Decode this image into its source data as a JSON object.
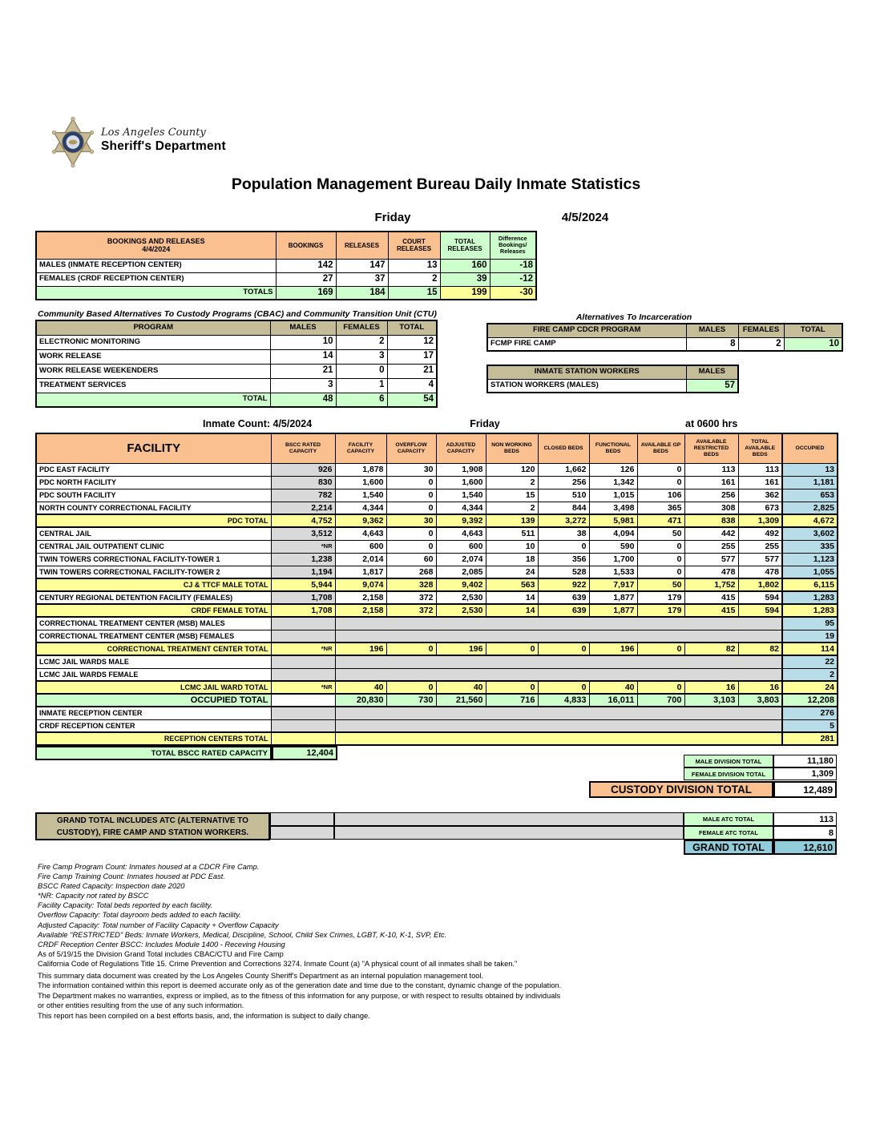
{
  "logo": {
    "line1": "Los Angeles County",
    "line2": "Sheriff's Department"
  },
  "title": "Population Management Bureau Daily Inmate Statistics",
  "colors": {
    "header_orange": "#FAC090",
    "total_yellow": "#FFFF99",
    "green": "#CCFFCC",
    "tan": "#C4BD97",
    "gray": "#D9D9D9",
    "occupied_blue": "#B7DEE8",
    "grand_blue": "#92CDDC"
  },
  "bookings": {
    "day": "Friday",
    "date": "4/5/2024",
    "header": {
      "title": "BOOKINGS AND RELEASES",
      "date": "4/4/2024",
      "cols": [
        "BOOKINGS",
        "RELEASES",
        "COURT RELEASES",
        "TOTAL RELEASES",
        "Difference Bookings/ Releases"
      ]
    },
    "rows": [
      {
        "label": "MALES (INMATE RECEPTION CENTER)",
        "values": [
          "142",
          "147",
          "13",
          "160",
          "-18"
        ]
      },
      {
        "label": "FEMALES (CRDF RECEPTION CENTER)",
        "values": [
          "27",
          "37",
          "2",
          "39",
          "-12"
        ]
      }
    ],
    "totals": {
      "label": "TOTALS",
      "values": [
        "169",
        "184",
        "15",
        "199",
        "-30"
      ]
    }
  },
  "cbac": {
    "title": "Community Based Alternatives To Custody Programs (CBAC) and Community Transition Unit (CTU)",
    "cols": [
      "PROGRAM",
      "MALES",
      "FEMALES",
      "TOTAL"
    ],
    "rows": [
      {
        "label": "ELECTRONIC MONITORING",
        "values": [
          "10",
          "2",
          "12"
        ]
      },
      {
        "label": "WORK RELEASE",
        "values": [
          "14",
          "3",
          "17"
        ]
      },
      {
        "label": "WORK RELEASE WEEKENDERS",
        "values": [
          "21",
          "0",
          "21"
        ]
      },
      {
        "label": "TREATMENT SERVICES",
        "values": [
          "3",
          "1",
          "4"
        ]
      }
    ],
    "totals": {
      "label": "TOTAL",
      "values": [
        "48",
        "6",
        "54"
      ]
    }
  },
  "alternatives": {
    "title": "Alternatives To Incarceration",
    "fire_camp": {
      "cols": [
        "FIRE CAMP CDCR PROGRAM",
        "MALES",
        "FEMALES",
        "TOTAL"
      ],
      "row": {
        "label": "FCMP FIRE CAMP",
        "values": [
          "8",
          "2",
          "10"
        ]
      }
    },
    "station_workers": {
      "cols": [
        "INMATE STATION WORKERS",
        "MALES"
      ],
      "row": {
        "label": "STATION WORKERS (MALES)",
        "value": "57"
      }
    }
  },
  "facility_table": {
    "inmate_count_label": "Inmate Count: 4/5/2024",
    "day": "Friday",
    "time": "at 0600 hrs",
    "columns": [
      "FACILITY",
      "BSCC RATED CAPACITY",
      "FACILITY CAPACITY",
      "OVERFLOW CAPACITY",
      "ADJUSTED CAPACITY",
      "NON WORKING BEDS",
      "CLOSED BEDS",
      "FUNCTIONAL BEDS",
      "AVAILABLE GP BEDS",
      "AVAILABLE RESTRICTED BEDS",
      "TOTAL AVAILABLE BEDS",
      "OCCUPIED"
    ],
    "rows": [
      {
        "type": "data",
        "label": "PDC EAST FACILITY",
        "bscc": "926",
        "vals": [
          "1,878",
          "30",
          "1,908",
          "120",
          "1,662",
          "126",
          "0",
          "113",
          "113"
        ],
        "occupied": "13"
      },
      {
        "type": "data",
        "label": "PDC NORTH FACILITY",
        "bscc": "830",
        "vals": [
          "1,600",
          "0",
          "1,600",
          "2",
          "256",
          "1,342",
          "0",
          "161",
          "161"
        ],
        "occupied": "1,181"
      },
      {
        "type": "data",
        "label": "PDC SOUTH FACILITY",
        "bscc": "782",
        "vals": [
          "1,540",
          "0",
          "1,540",
          "15",
          "510",
          "1,015",
          "106",
          "256",
          "362"
        ],
        "occupied": "653"
      },
      {
        "type": "data",
        "label": "NORTH COUNTY CORRECTIONAL FACILITY",
        "bscc": "2,214",
        "vals": [
          "4,344",
          "0",
          "4,344",
          "2",
          "844",
          "3,498",
          "365",
          "308",
          "673"
        ],
        "occupied": "2,825"
      },
      {
        "type": "total",
        "label": "PDC TOTAL",
        "bscc": "4,752",
        "vals": [
          "9,362",
          "30",
          "9,392",
          "139",
          "3,272",
          "5,981",
          "471",
          "838",
          "1,309"
        ],
        "occupied": "4,672"
      },
      {
        "type": "data",
        "label": "CENTRAL JAIL",
        "bscc": "3,512",
        "vals": [
          "4,643",
          "0",
          "4,643",
          "511",
          "38",
          "4,094",
          "50",
          "442",
          "492"
        ],
        "occupied": "3,602"
      },
      {
        "type": "data",
        "label": "CENTRAL JAIL OUTPATIENT CLINIC",
        "bscc": "*NR",
        "vals": [
          "600",
          "0",
          "600",
          "10",
          "0",
          "590",
          "0",
          "255",
          "255"
        ],
        "occupied": "335"
      },
      {
        "type": "data",
        "label": "TWIN TOWERS CORRECTIONAL FACILITY-TOWER 1",
        "bscc": "1,238",
        "vals": [
          "2,014",
          "60",
          "2,074",
          "18",
          "356",
          "1,700",
          "0",
          "577",
          "577"
        ],
        "occupied": "1,123"
      },
      {
        "type": "data",
        "label": "TWIN TOWERS CORRECTIONAL FACILITY-TOWER 2",
        "bscc": "1,194",
        "vals": [
          "1,817",
          "268",
          "2,085",
          "24",
          "528",
          "1,533",
          "0",
          "478",
          "478"
        ],
        "occupied": "1,055"
      },
      {
        "type": "total",
        "label": "CJ & TTCF MALE TOTAL",
        "bscc": "5,944",
        "vals": [
          "9,074",
          "328",
          "9,402",
          "563",
          "922",
          "7,917",
          "50",
          "1,752",
          "1,802"
        ],
        "occupied": "6,115"
      },
      {
        "type": "data",
        "label": "CENTURY REGIONAL DETENTION FACILITY (FEMALES)",
        "bscc": "1,708",
        "vals": [
          "2,158",
          "372",
          "2,530",
          "14",
          "639",
          "1,877",
          "179",
          "415",
          "594"
        ],
        "occupied": "1,283"
      },
      {
        "type": "total",
        "label": "CRDF FEMALE TOTAL",
        "bscc": "1,708",
        "vals": [
          "2,158",
          "372",
          "2,530",
          "14",
          "639",
          "1,877",
          "179",
          "415",
          "594"
        ],
        "occupied": "1,283"
      },
      {
        "type": "span",
        "label": "CORRECTIONAL TREATMENT CENTER (MSB) MALES",
        "occupied": "95"
      },
      {
        "type": "span",
        "label": "CORRECTIONAL TREATMENT CENTER (MSB) FEMALES",
        "occupied": "19"
      },
      {
        "type": "total",
        "label": "CORRECTIONAL TREATMENT CENTER  TOTAL",
        "bscc": "*NR",
        "vals": [
          "196",
          "0",
          "196",
          "0",
          "0",
          "196",
          "0",
          "82",
          "82"
        ],
        "occupied": "114"
      },
      {
        "type": "span",
        "label": "LCMC JAIL WARDS MALE",
        "occupied": "22"
      },
      {
        "type": "span",
        "label": "LCMC JAIL WARDS FEMALE",
        "occupied": "2"
      },
      {
        "type": "total",
        "label": "LCMC JAIL WARD TOTAL",
        "bscc": "*NR",
        "vals": [
          "40",
          "0",
          "40",
          "0",
          "0",
          "40",
          "0",
          "16",
          "16"
        ],
        "occupied": "24"
      },
      {
        "type": "occupied_total",
        "label": "OCCUPIED TOTAL",
        "bscc": "",
        "vals": [
          "20,830",
          "730",
          "21,560",
          "716",
          "4,833",
          "16,011",
          "700",
          "3,103",
          "3,803"
        ],
        "occupied": "12,208"
      },
      {
        "type": "span",
        "label": "INMATE RECEPTION CENTER",
        "occupied": "276"
      },
      {
        "type": "span",
        "label": "CRDF RECEPTION CENTER",
        "occupied": "5"
      },
      {
        "type": "total_span",
        "label": "RECEPTION CENTERS TOTAL",
        "occupied": "281"
      }
    ]
  },
  "summary": {
    "total_bscc_label": "TOTAL BSCC RATED CAPACITY",
    "total_bscc_value": "12,404",
    "male_division_label": "MALE DIVISION TOTAL",
    "male_division_value": "11,180",
    "female_division_label": "FEMALE DIVISION TOTAL",
    "female_division_value": "1,309",
    "custody_label": "CUSTODY DIVISION TOTAL",
    "custody_value": "12,489"
  },
  "grand_box": {
    "note_line1": "GRAND TOTAL INCLUDES ATC (ALTERNATIVE TO",
    "note_line2": "CUSTODY), FIRE CAMP AND STATION WORKERS.",
    "male_atc_label": "MALE ATC TOTAL",
    "male_atc_value": "113",
    "female_atc_label": "FEMALE ATC TOTAL",
    "female_atc_value": "8",
    "grand_label": "GRAND TOTAL",
    "grand_value": "12,610"
  },
  "footnotes": [
    {
      "italic": true,
      "text": "Fire Camp Program Count: Inmates housed at a CDCR Fire Camp."
    },
    {
      "italic": true,
      "text": "Fire Camp Training Count: Inmates housed at PDC East."
    },
    {
      "italic": true,
      "text": "BSCC Rated Capacity: Inspection date 2020"
    },
    {
      "italic": true,
      "text": "*NR: Capacity not rated by BSCC"
    },
    {
      "italic": true,
      "text": "Facility Capacity: Total beds reported by each facility."
    },
    {
      "italic": true,
      "text": "Overflow Capacity: Total dayroom beds added to each facility."
    },
    {
      "italic": true,
      "text": "Adjusted Capacity: Total number of Facility Capacity + Overflow Capacity"
    },
    {
      "italic": true,
      "text": "Available \"RESTRICTED\" Beds: Inmate Workers, Medical, Discipline, School, Child Sex Crimes,  LGBT, K-10, K-1, SVP, Etc."
    },
    {
      "italic": true,
      "text": "CRDF Reception Center BSCC: Includes Module 1400 - Receving Housing"
    },
    {
      "italic": false,
      "text": "As of 5/19/15 the Division Grand Total includes CBAC/CTU and Fire Camp"
    },
    {
      "italic": false,
      "text": "California Code of Regulations Title 15. Crime Prevention and Corrections 3274. Inmate Count (a) \"A physical count of all inmates shall be taken.\""
    }
  ],
  "disclaimer": [
    "This summary data document was created by the Los Angeles County Sheriff's Department as an internal population management tool.",
    "The information contained within this report is deemed accurate only as of the generation date and time due to the constant, dynamic change of the population.",
    "The Department makes no warranties, express or implied, as to the fitness of this information for any purpose, or with respect to results obtained by individuals",
    "or other entities resulting from the use of any such information.",
    "This report has been compiled on a best efforts basis, and, the information is subject to daily change."
  ]
}
